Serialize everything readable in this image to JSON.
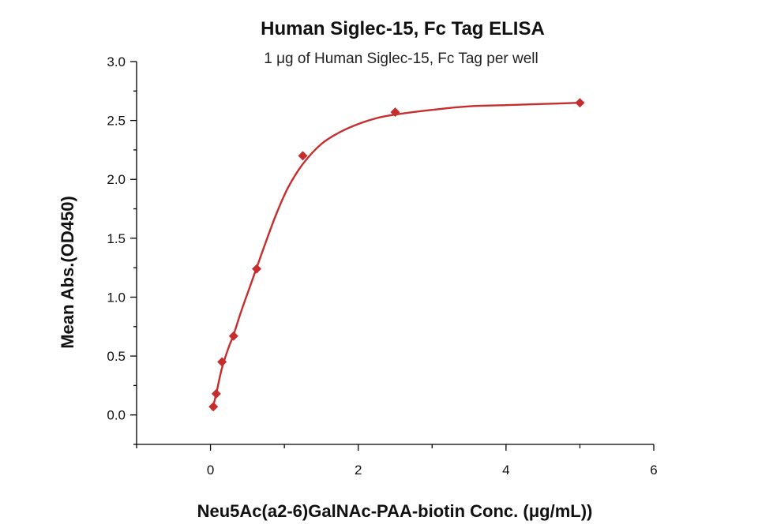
{
  "chart_data": {
    "type": "scatter",
    "title": "Human Siglec-15, Fc Tag ELISA",
    "subtitle": "1 μg of Human Siglec-15, Fc Tag per well",
    "xlabel": "Neu5Ac(a2-6)GalNAc-PAA-biotin Conc. (μg/mL))",
    "ylabel": "Mean Abs.(OD450)",
    "xlim": [
      -1,
      6
    ],
    "ylim": [
      -0.25,
      3.0
    ],
    "x_ticks": [
      0,
      2,
      4,
      6
    ],
    "x_tick_labels": [
      "0",
      "2",
      "4",
      "6"
    ],
    "y_ticks": [
      0.0,
      0.5,
      1.0,
      1.5,
      2.0,
      2.5,
      3.0
    ],
    "y_tick_labels": [
      "0.0",
      "0.5",
      "1.0",
      "1.5",
      "2.0",
      "2.5",
      "3.0"
    ],
    "grid": false,
    "legend": "none",
    "series": [
      {
        "marker": "diamond",
        "color": "#c62d2d",
        "x": [
          0.039,
          0.078,
          0.156,
          0.3125,
          0.625,
          1.25,
          2.5,
          5.0
        ],
        "y": [
          0.07,
          0.18,
          0.45,
          0.67,
          1.24,
          2.2,
          2.57,
          2.65
        ]
      }
    ],
    "fit_curve": {
      "color": "#c62d2d",
      "x": [
        0.02,
        0.039,
        0.078,
        0.156,
        0.25,
        0.3125,
        0.4,
        0.5,
        0.625,
        0.75,
        0.9,
        1.05,
        1.25,
        1.5,
        1.75,
        2.0,
        2.25,
        2.5,
        3.0,
        3.5,
        4.0,
        4.5,
        5.0
      ],
      "y": [
        0.04,
        0.08,
        0.18,
        0.4,
        0.58,
        0.68,
        0.85,
        1.03,
        1.25,
        1.47,
        1.72,
        1.93,
        2.13,
        2.3,
        2.4,
        2.47,
        2.52,
        2.55,
        2.59,
        2.62,
        2.63,
        2.64,
        2.65
      ]
    }
  }
}
